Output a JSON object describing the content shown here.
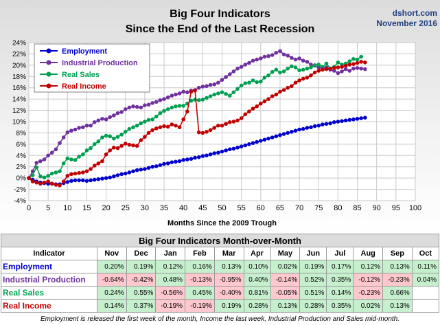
{
  "title_line1": "Big Four Indicators",
  "title_line2": "Since the End of the Last Recession",
  "source": "dshort.com",
  "date": "November 2016",
  "chart_data": {
    "type": "line",
    "xlabel": "Months Since the 2009 Trough",
    "ylabel": "",
    "xlim": [
      0,
      100
    ],
    "ylim": [
      -4,
      24
    ],
    "x_ticks": [
      0,
      5,
      10,
      15,
      20,
      25,
      30,
      35,
      40,
      45,
      50,
      55,
      60,
      65,
      70,
      75,
      80,
      85,
      90,
      95,
      100
    ],
    "y_ticks": [
      "-4%",
      "-2%",
      "0%",
      "2%",
      "4%",
      "6%",
      "8%",
      "10%",
      "12%",
      "14%",
      "16%",
      "18%",
      "20%",
      "22%",
      "24%"
    ],
    "y_tick_values": [
      -4,
      -2,
      0,
      2,
      4,
      6,
      8,
      10,
      12,
      14,
      16,
      18,
      20,
      22,
      24
    ],
    "grid": true,
    "legend_position": "top-left",
    "series": [
      {
        "name": "Employment",
        "color": "#0000cc",
        "values": [
          0,
          -0.3,
          -0.6,
          -0.8,
          -0.9,
          -1.0,
          -1.0,
          -1.1,
          -1.1,
          -0.9,
          -0.7,
          -0.5,
          -0.4,
          -0.4,
          -0.4,
          -0.5,
          -0.4,
          -0.3,
          -0.2,
          -0.1,
          0.0,
          0.1,
          0.3,
          0.5,
          0.7,
          0.8,
          1.0,
          1.2,
          1.4,
          1.5,
          1.6,
          1.8,
          2.0,
          2.1,
          2.3,
          2.5,
          2.6,
          2.8,
          2.9,
          3.0,
          3.2,
          3.3,
          3.4,
          3.6,
          3.7,
          3.9,
          4.0,
          4.2,
          4.4,
          4.5,
          4.7,
          4.9,
          5.1,
          5.2,
          5.4,
          5.6,
          5.8,
          6.0,
          6.2,
          6.4,
          6.6,
          6.8,
          7.0,
          7.2,
          7.4,
          7.6,
          7.8,
          8.0,
          8.2,
          8.4,
          8.6,
          8.7,
          8.9,
          9.0,
          9.2,
          9.3,
          9.5,
          9.6,
          9.7,
          9.9,
          10.0,
          10.1,
          10.2,
          10.3,
          10.4,
          10.5,
          10.6,
          10.7
        ]
      },
      {
        "name": "Industrial Production",
        "color": "#7030a0",
        "values": [
          0,
          1.2,
          2.7,
          3.0,
          3.3,
          4.0,
          4.5,
          5.1,
          6.2,
          7.2,
          8.1,
          8.4,
          8.6,
          8.9,
          9.0,
          9.3,
          9.3,
          9.9,
          10.2,
          10.5,
          10.4,
          10.8,
          11.1,
          11.5,
          11.7,
          12.2,
          12.5,
          12.7,
          12.6,
          12.5,
          12.9,
          13.0,
          13.3,
          13.5,
          13.8,
          14.0,
          14.3,
          14.6,
          14.8,
          15.0,
          15.3,
          15.2,
          15.5,
          15.6,
          16.0,
          16.2,
          16.3,
          16.5,
          16.6,
          16.9,
          17.4,
          17.9,
          18.4,
          18.9,
          19.4,
          19.7,
          20.1,
          20.4,
          20.8,
          21.0,
          21.2,
          21.5,
          21.6,
          21.8,
          22.2,
          22.5,
          21.9,
          21.7,
          21.3,
          21.0,
          21.2,
          20.8,
          20.6,
          20.1,
          19.9,
          19.6,
          19.4,
          19.6,
          19.2,
          19.0,
          18.6,
          18.9,
          19.3,
          19.0,
          19.4,
          19.5,
          19.4,
          19.3
        ]
      },
      {
        "name": "Real Sales",
        "color": "#00a050",
        "values": [
          0,
          0.5,
          1.9,
          0.3,
          0.1,
          0.4,
          0.8,
          1.0,
          1.2,
          2.6,
          3.5,
          3.3,
          3.2,
          3.8,
          4.2,
          4.9,
          5.3,
          6.0,
          6.5,
          7.2,
          7.5,
          7.4,
          7.0,
          7.3,
          7.7,
          8.2,
          8.7,
          9.0,
          9.3,
          9.7,
          10.0,
          10.3,
          10.4,
          10.9,
          11.5,
          11.9,
          12.2,
          12.5,
          12.7,
          12.8,
          12.8,
          13.2,
          13.7,
          13.9,
          13.8,
          13.9,
          14.2,
          14.5,
          14.8,
          15.0,
          15.2,
          14.9,
          14.6,
          15.2,
          15.8,
          16.4,
          16.8,
          16.9,
          17.3,
          17.0,
          17.1,
          17.8,
          18.2,
          18.8,
          19.2,
          18.7,
          18.9,
          19.4,
          19.8,
          19.6,
          19.1,
          19.2,
          19.4,
          19.6,
          20.0,
          20.1,
          19.7,
          20.3,
          19.4,
          19.7,
          20.5,
          20.1,
          20.3,
          20.7,
          21.1,
          21.0,
          21.5
        ]
      },
      {
        "name": "Real Income",
        "color": "#c00000",
        "values": [
          0,
          -0.6,
          -0.8,
          -1.0,
          -0.8,
          -0.6,
          -1.0,
          -1.2,
          -1.3,
          -0.6,
          0.4,
          0.7,
          0.8,
          0.9,
          1.0,
          1.2,
          1.6,
          2.2,
          2.6,
          3.0,
          4.2,
          4.9,
          5.4,
          5.3,
          5.7,
          6.1,
          5.9,
          5.8,
          5.7,
          6.7,
          7.3,
          8.0,
          8.5,
          8.8,
          9.0,
          9.2,
          9.1,
          9.5,
          9.3,
          9.0,
          10.4,
          11.8,
          15.3,
          15.5,
          8.1,
          8.0,
          8.2,
          8.5,
          8.9,
          9.3,
          9.3,
          9.6,
          9.9,
          10.0,
          10.2,
          10.6,
          11.3,
          11.8,
          12.3,
          12.7,
          13.2,
          13.6,
          14.0,
          14.5,
          14.8,
          15.3,
          15.6,
          16.0,
          16.3,
          16.9,
          17.3,
          17.6,
          17.8,
          18.2,
          18.7,
          19.0,
          19.2,
          19.3,
          19.4,
          19.5,
          19.6,
          19.7,
          19.9,
          20.1,
          20.2,
          20.4,
          20.6,
          20.5
        ]
      }
    ]
  },
  "table": {
    "title": "Big Four Indicators Month-over-Month",
    "header_label": "Indicator",
    "months": [
      "Nov",
      "Dec",
      "Jan",
      "Feb",
      "Mar",
      "Apr",
      "May",
      "Jun",
      "Jul",
      "Aug",
      "Sep",
      "Oct"
    ],
    "rows": [
      {
        "name": "Employment",
        "color": "#0000cc",
        "values": [
          "0.20%",
          "0.19%",
          "0.12%",
          "0.16%",
          "0.13%",
          "0.10%",
          "0.02%",
          "0.19%",
          "0.17%",
          "0.12%",
          "0.13%",
          "0.11%"
        ]
      },
      {
        "name": "Industrial Production",
        "color": "#7030a0",
        "values": [
          "-0.64%",
          "-0.42%",
          "0.48%",
          "-0.13%",
          "-0.95%",
          "0.40%",
          "-0.14%",
          "0.52%",
          "0.35%",
          "-0.12%",
          "-0.23%",
          "0.04%"
        ]
      },
      {
        "name": "Real Sales",
        "color": "#00a050",
        "values": [
          "0.24%",
          "0.55%",
          "-0.56%",
          "0.45%",
          "-0.40%",
          "0.81%",
          "-0.05%",
          "0.51%",
          "0.14%",
          "-0.23%",
          "0.66%",
          ""
        ]
      },
      {
        "name": "Real Income",
        "color": "#c00000",
        "values": [
          "0.14%",
          "0.37%",
          "-0.19%",
          "-0.19%",
          "0.19%",
          "0.28%",
          "0.13%",
          "0.28%",
          "0.35%",
          "0.02%",
          "0.13%",
          ""
        ]
      }
    ]
  },
  "footnote": "Employment is released the first week of the month, Income the last week, Industrial Production and Sales mid-month."
}
